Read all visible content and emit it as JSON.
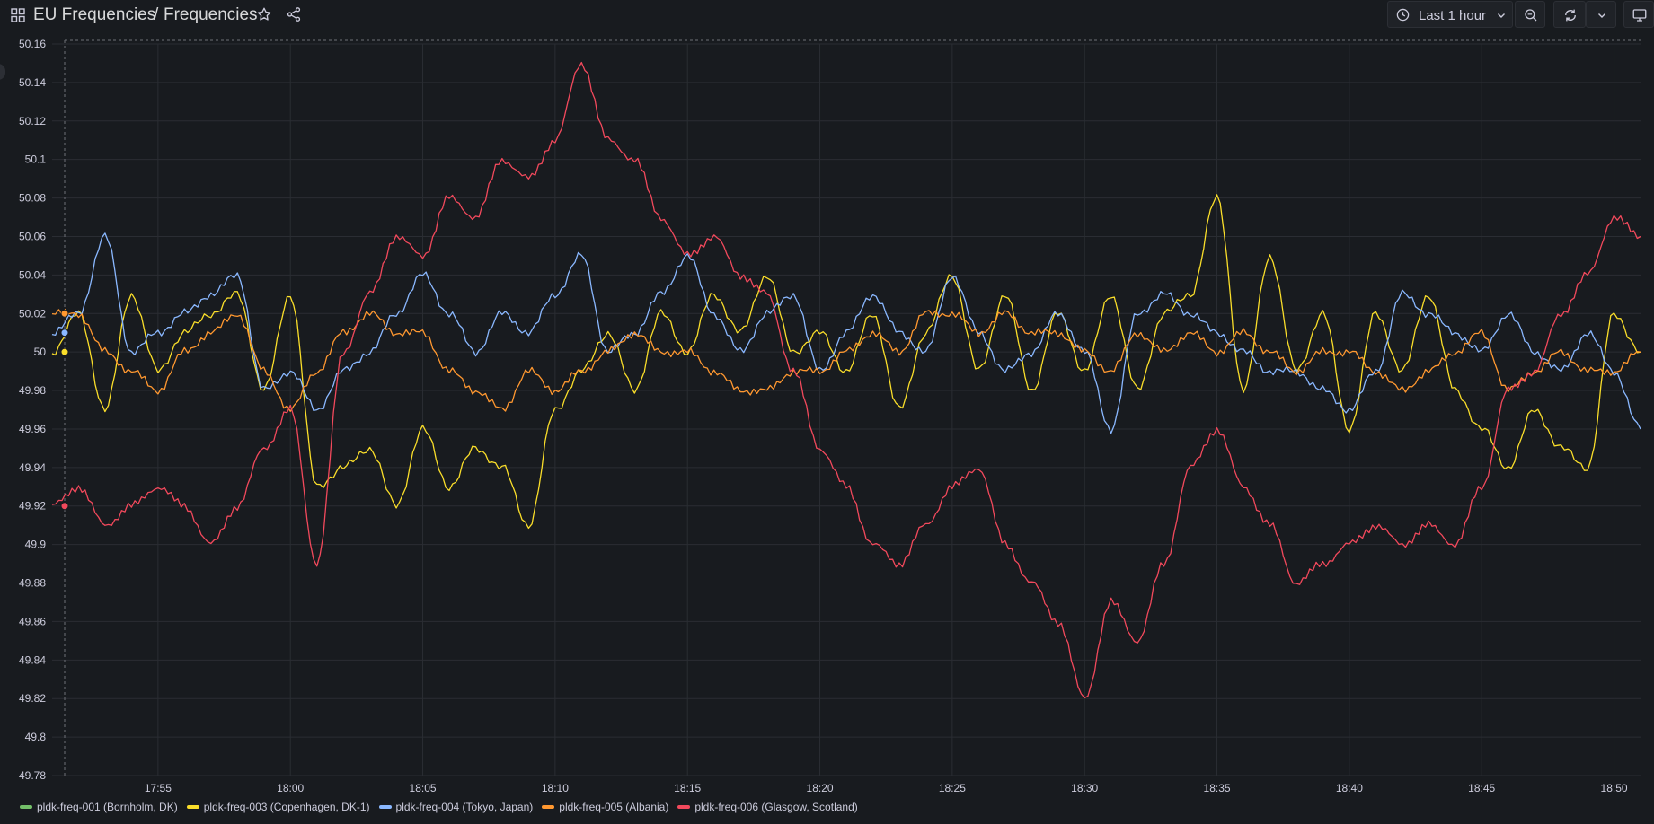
{
  "header": {
    "folder": "EU Frequencies",
    "separator": "/",
    "title": "Frequencies",
    "time_range_label": "Last 1 hour"
  },
  "icons": {
    "apps": "grid-icon",
    "favorite": "star-icon",
    "share": "share-icon",
    "time": "clock-icon",
    "zoom": "zoom-out-icon",
    "refresh": "refresh-icon",
    "tv": "monitor-icon"
  },
  "colors": {
    "background": "#181b1f",
    "grid": "#2a2d33",
    "text": "#ccccdc"
  },
  "chart_data": {
    "type": "line",
    "ylim": [
      49.78,
      50.16
    ],
    "y_ticks": [
      "50.16",
      "50.14",
      "50.12",
      "50.1",
      "50.08",
      "50.06",
      "50.04",
      "50.02",
      "50",
      "49.98",
      "49.96",
      "49.94",
      "49.92",
      "49.9",
      "49.88",
      "49.86",
      "49.84",
      "49.82",
      "49.8",
      "49.78"
    ],
    "x_ticks": [
      "17:55",
      "18:00",
      "18:05",
      "18:10",
      "18:15",
      "18:20",
      "18:25",
      "18:30",
      "18:35",
      "18:40",
      "18:45",
      "18:50"
    ],
    "xlim": [
      "17:51",
      "18:51"
    ],
    "grid": true,
    "legend": "bottom",
    "series": [
      {
        "name": "pldk-freq-001 (Bornholm, DK)",
        "color": "#73bf69",
        "x": [],
        "values": []
      },
      {
        "name": "pldk-freq-003 (Copenhagen, DK-1)",
        "color": "#fade2a",
        "x": [
          "17:51",
          "17:52",
          "17:53",
          "17:54",
          "17:55",
          "17:56",
          "17:57",
          "17:58",
          "17:59",
          "18:00",
          "18:01",
          "18:02",
          "18:03",
          "18:04",
          "18:05",
          "18:06",
          "18:07",
          "18:08",
          "18:09",
          "18:10",
          "18:11",
          "18:12",
          "18:13",
          "18:14",
          "18:15",
          "18:16",
          "18:17",
          "18:18",
          "18:19",
          "18:20",
          "18:21",
          "18:22",
          "18:23",
          "18:24",
          "18:25",
          "18:26",
          "18:27",
          "18:28",
          "18:29",
          "18:30",
          "18:31",
          "18:32",
          "18:33",
          "18:34",
          "18:35",
          "18:36",
          "18:37",
          "18:38",
          "18:39",
          "18:40",
          "18:41",
          "18:42",
          "18:43",
          "18:44",
          "18:45",
          "18:46",
          "18:47",
          "18:48",
          "18:49",
          "18:50",
          "18:51"
        ],
        "values": [
          50.0,
          50.02,
          49.97,
          50.03,
          49.99,
          50.01,
          50.02,
          50.03,
          49.98,
          50.03,
          49.93,
          49.94,
          49.95,
          49.92,
          49.96,
          49.93,
          49.95,
          49.94,
          49.91,
          49.97,
          49.99,
          50.01,
          49.98,
          50.02,
          50.0,
          50.03,
          50.01,
          50.04,
          50.0,
          50.01,
          49.99,
          50.02,
          49.97,
          50.01,
          50.04,
          49.99,
          50.03,
          49.98,
          50.02,
          49.99,
          50.03,
          49.98,
          50.02,
          50.03,
          50.08,
          49.98,
          50.05,
          49.99,
          50.02,
          49.96,
          50.02,
          49.99,
          50.03,
          49.98,
          49.96,
          49.94,
          49.97,
          49.95,
          49.94,
          50.02,
          50.0
        ]
      },
      {
        "name": "pldk-freq-004 (Tokyo, Japan)",
        "color": "#8ab8ff",
        "x": [
          "17:51",
          "17:52",
          "17:53",
          "17:54",
          "17:55",
          "17:56",
          "17:57",
          "17:58",
          "17:59",
          "18:00",
          "18:01",
          "18:02",
          "18:03",
          "18:04",
          "18:05",
          "18:06",
          "18:07",
          "18:08",
          "18:09",
          "18:10",
          "18:11",
          "18:12",
          "18:13",
          "18:14",
          "18:15",
          "18:16",
          "18:17",
          "18:18",
          "18:19",
          "18:20",
          "18:21",
          "18:22",
          "18:23",
          "18:24",
          "18:25",
          "18:26",
          "18:27",
          "18:28",
          "18:29",
          "18:30",
          "18:31",
          "18:32",
          "18:33",
          "18:34",
          "18:35",
          "18:36",
          "18:37",
          "18:38",
          "18:39",
          "18:40",
          "18:41",
          "18:42",
          "18:43",
          "18:44",
          "18:45",
          "18:46",
          "18:47",
          "18:48",
          "18:49",
          "18:50",
          "18:51"
        ],
        "values": [
          50.01,
          50.02,
          50.06,
          50.0,
          50.01,
          50.02,
          50.03,
          50.04,
          49.98,
          49.99,
          49.97,
          49.99,
          50.0,
          50.02,
          50.04,
          50.02,
          50.0,
          50.02,
          50.01,
          50.03,
          50.05,
          50.0,
          50.01,
          50.03,
          50.05,
          50.02,
          50.0,
          50.02,
          50.03,
          49.99,
          50.01,
          50.03,
          50.01,
          50.0,
          50.04,
          50.01,
          49.99,
          50.0,
          50.02,
          50.0,
          49.96,
          50.02,
          50.03,
          50.02,
          50.01,
          50.0,
          49.99,
          49.99,
          49.98,
          49.97,
          49.99,
          50.03,
          50.02,
          50.01,
          50.0,
          50.02,
          50.0,
          49.99,
          50.01,
          49.99,
          49.96
        ]
      },
      {
        "name": "pldk-freq-005 (Albania)",
        "color": "#ff9830",
        "x": [
          "17:51",
          "17:52",
          "17:53",
          "17:54",
          "17:55",
          "17:56",
          "17:57",
          "17:58",
          "17:59",
          "18:00",
          "18:01",
          "18:02",
          "18:03",
          "18:04",
          "18:05",
          "18:06",
          "18:07",
          "18:08",
          "18:09",
          "18:10",
          "18:11",
          "18:12",
          "18:13",
          "18:14",
          "18:15",
          "18:16",
          "18:17",
          "18:18",
          "18:19",
          "18:20",
          "18:21",
          "18:22",
          "18:23",
          "18:24",
          "18:25",
          "18:26",
          "18:27",
          "18:28",
          "18:29",
          "18:30",
          "18:31",
          "18:32",
          "18:33",
          "18:34",
          "18:35",
          "18:36",
          "18:37",
          "18:38",
          "18:39",
          "18:40",
          "18:41",
          "18:42",
          "18:43",
          "18:44",
          "18:45",
          "18:46",
          "18:47",
          "18:48",
          "18:49",
          "18:50",
          "18:51"
        ],
        "values": [
          50.02,
          50.02,
          50.0,
          49.99,
          49.98,
          50.0,
          50.01,
          50.02,
          49.99,
          49.97,
          49.99,
          50.01,
          50.02,
          50.01,
          50.01,
          49.99,
          49.98,
          49.97,
          49.99,
          49.98,
          49.99,
          50.0,
          50.01,
          50.0,
          50.0,
          49.99,
          49.98,
          49.98,
          49.99,
          49.99,
          50.0,
          50.01,
          50.0,
          50.02,
          50.02,
          50.01,
          50.02,
          50.01,
          50.01,
          50.0,
          49.99,
          50.01,
          50.0,
          50.01,
          50.0,
          50.01,
          50.0,
          49.99,
          50.0,
          50.0,
          49.99,
          49.98,
          49.99,
          50.0,
          50.01,
          49.98,
          49.99,
          50.0,
          49.99,
          49.99,
          50.0
        ]
      },
      {
        "name": "pldk-freq-006 (Glasgow, Scotland)",
        "color": "#f2495c",
        "x": [
          "17:51",
          "17:52",
          "17:53",
          "17:54",
          "17:55",
          "17:56",
          "17:57",
          "17:58",
          "17:59",
          "18:00",
          "18:01",
          "18:02",
          "18:03",
          "18:04",
          "18:05",
          "18:06",
          "18:07",
          "18:08",
          "18:09",
          "18:10",
          "18:11",
          "18:12",
          "18:13",
          "18:14",
          "18:15",
          "18:16",
          "18:17",
          "18:18",
          "18:19",
          "18:20",
          "18:21",
          "18:22",
          "18:23",
          "18:24",
          "18:25",
          "18:26",
          "18:27",
          "18:28",
          "18:29",
          "18:30",
          "18:31",
          "18:32",
          "18:33",
          "18:34",
          "18:35",
          "18:36",
          "18:37",
          "18:38",
          "18:39",
          "18:40",
          "18:41",
          "18:42",
          "18:43",
          "18:44",
          "18:45",
          "18:46",
          "18:47",
          "18:48",
          "18:49",
          "18:50",
          "18:51"
        ],
        "values": [
          49.92,
          49.93,
          49.91,
          49.92,
          49.93,
          49.92,
          49.9,
          49.92,
          49.95,
          49.97,
          49.89,
          50.0,
          50.03,
          50.06,
          50.05,
          50.08,
          50.07,
          50.1,
          50.09,
          50.11,
          50.15,
          50.11,
          50.1,
          50.07,
          50.05,
          50.06,
          50.04,
          50.03,
          49.99,
          49.95,
          49.93,
          49.9,
          49.89,
          49.91,
          49.93,
          49.94,
          49.9,
          49.88,
          49.86,
          49.82,
          49.87,
          49.85,
          49.89,
          49.94,
          49.96,
          49.93,
          49.91,
          49.88,
          49.89,
          49.9,
          49.91,
          49.9,
          49.91,
          49.9,
          49.93,
          49.98,
          49.99,
          50.02,
          50.04,
          50.07,
          50.06
        ]
      }
    ]
  }
}
